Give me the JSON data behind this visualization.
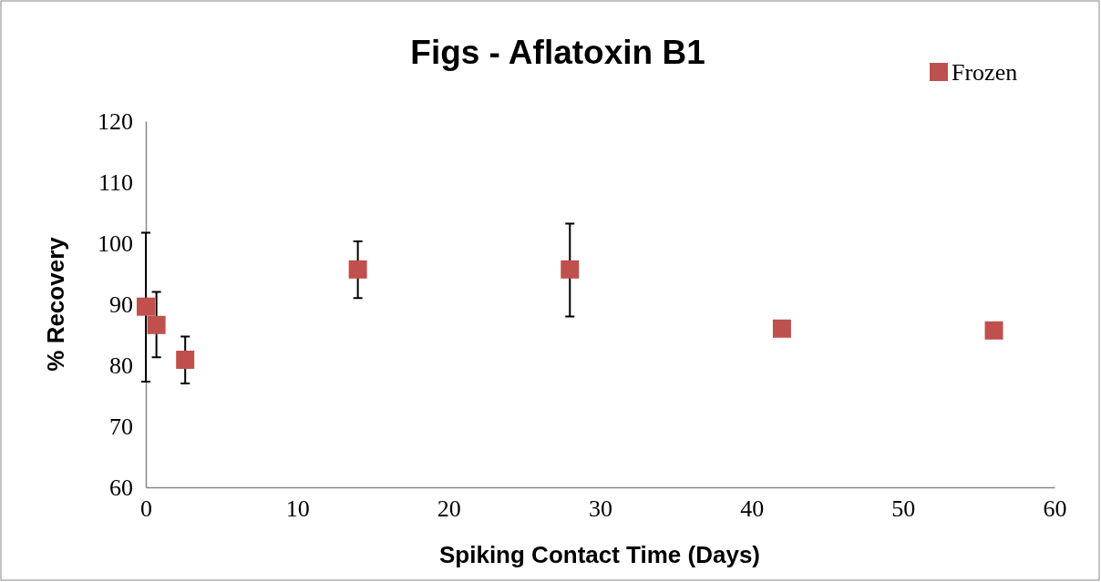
{
  "chart_data": {
    "type": "scatter",
    "title": "Figs - Aflatoxin B1",
    "xlabel": "Spiking Contact Time (Days)",
    "ylabel": "% Recovery",
    "x": [
      0,
      0.7,
      2.6,
      14,
      28,
      42,
      56
    ],
    "series": [
      {
        "name": "Frozen",
        "color": "#c0504d",
        "values": [
          89.6,
          86.6,
          80.9,
          95.7,
          95.7,
          86.0,
          85.7
        ],
        "errors": [
          [
            77.3,
            101.7
          ],
          [
            81.3,
            92.0
          ],
          [
            77.0,
            84.7
          ],
          [
            91.0,
            100.3
          ],
          [
            88.0,
            103.2
          ],
          null,
          null
        ]
      }
    ],
    "xlim": [
      0,
      60
    ],
    "xticks": [
      0,
      10,
      20,
      30,
      40,
      50,
      60
    ],
    "ylim": [
      60,
      120
    ],
    "yticks": [
      60,
      70,
      80,
      90,
      100,
      110,
      120
    ],
    "marker": "square",
    "legend": "top right",
    "grid": false
  }
}
